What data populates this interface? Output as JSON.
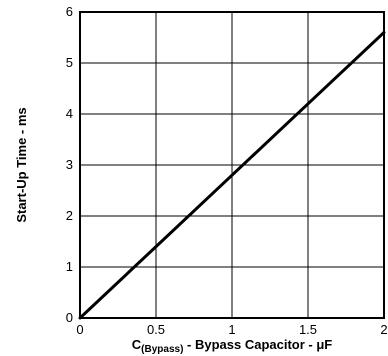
{
  "chart_data": {
    "type": "line",
    "xlabel": {
      "prefix": "C",
      "subscript": "(Bypass)",
      "suffix": " - Bypass Capacitor - μF"
    },
    "ylabel": "Start-Up Time - ms",
    "xlim": [
      0,
      2
    ],
    "ylim": [
      0,
      6
    ],
    "x_ticks": [
      0,
      0.5,
      1,
      1.5,
      2
    ],
    "x_tick_labels": [
      "0",
      "0.5",
      "1",
      "1.5",
      "2"
    ],
    "y_ticks": [
      0,
      1,
      2,
      3,
      4,
      5,
      6
    ],
    "y_tick_labels": [
      "0",
      "1",
      "2",
      "3",
      "4",
      "5",
      "6"
    ],
    "grid": true,
    "series": [
      {
        "x": [
          0,
          0.5,
          1,
          1.5,
          2
        ],
        "y": [
          0,
          1.4,
          2.8,
          4.2,
          5.6
        ]
      }
    ],
    "colors": {
      "line": "#000000",
      "grid": "#000000",
      "frame": "#000000"
    }
  }
}
